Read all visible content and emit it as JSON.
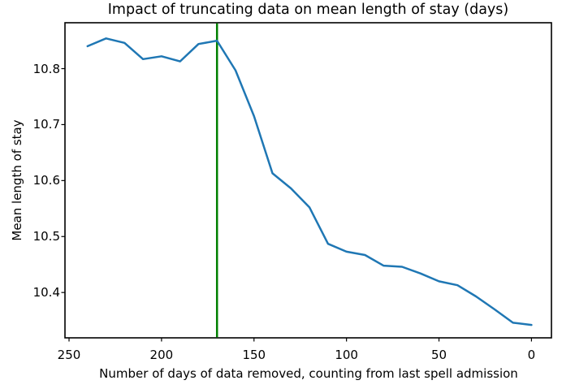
{
  "chart_data": {
    "type": "line",
    "title": "Impact of truncating data on mean length of stay (days)",
    "xlabel": "Number of days of data removed, counting from last spell admission",
    "ylabel": "Mean length of stay",
    "x": [
      240,
      230,
      220,
      210,
      200,
      190,
      180,
      170,
      160,
      150,
      140,
      130,
      120,
      110,
      100,
      90,
      80,
      70,
      60,
      50,
      40,
      30,
      20,
      10,
      0
    ],
    "y": [
      10.84,
      10.854,
      10.846,
      10.817,
      10.822,
      10.813,
      10.844,
      10.85,
      10.797,
      10.715,
      10.613,
      10.586,
      10.552,
      10.487,
      10.473,
      10.467,
      10.448,
      10.446,
      10.434,
      10.42,
      10.413,
      10.393,
      10.37,
      10.346,
      10.342
    ],
    "x_ticks": [
      250,
      200,
      150,
      100,
      50,
      0
    ],
    "y_ticks": [
      10.4,
      10.5,
      10.6,
      10.7,
      10.8
    ],
    "xlim": [
      252.2,
      -10.8
    ],
    "x_axis_reversed": true,
    "ylim": [
      10.319,
      10.882
    ],
    "grid": false,
    "legend": "none",
    "series_color": "#1f77b4",
    "axis_color": "#000000",
    "vline": {
      "x": 170,
      "color": "#008000"
    }
  }
}
